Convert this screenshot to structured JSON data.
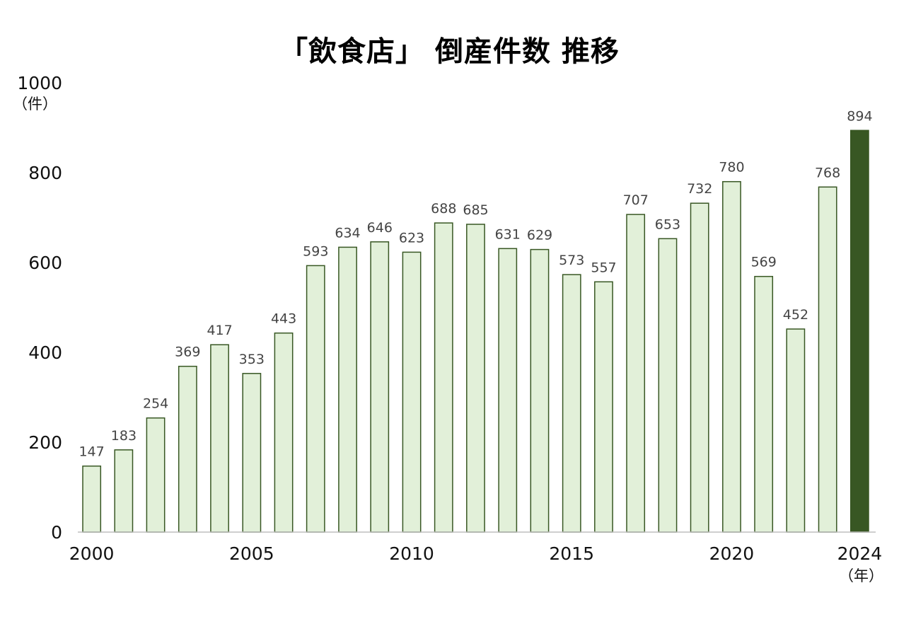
{
  "chart_data": {
    "type": "bar",
    "title": "「飲食店」 倒産件数 推移",
    "y_unit": "（件）",
    "x_unit": "（年）",
    "ylim": [
      0,
      1000
    ],
    "yticks": [
      0,
      200,
      400,
      600,
      800,
      1000
    ],
    "x_tick_labels": [
      "2000",
      "2005",
      "2010",
      "2015",
      "2020",
      "2024"
    ],
    "categories": [
      "2000",
      "2001",
      "2002",
      "2003",
      "2004",
      "2005",
      "2006",
      "2007",
      "2008",
      "2009",
      "2010",
      "2011",
      "2012",
      "2013",
      "2014",
      "2015",
      "2016",
      "2017",
      "2018",
      "2019",
      "2020",
      "2021",
      "2022",
      "2023",
      "2024"
    ],
    "values": [
      147,
      183,
      254,
      369,
      417,
      353,
      443,
      593,
      634,
      646,
      623,
      688,
      685,
      631,
      629,
      573,
      557,
      707,
      653,
      732,
      780,
      569,
      452,
      768,
      894
    ],
    "highlight_category": "2024",
    "colors": {
      "bar_fill": "#e2f0d9",
      "bar_stroke": "#385723",
      "highlight": "#385723",
      "axis": "#bfbfbf"
    },
    "grid": false,
    "legend": "none"
  }
}
